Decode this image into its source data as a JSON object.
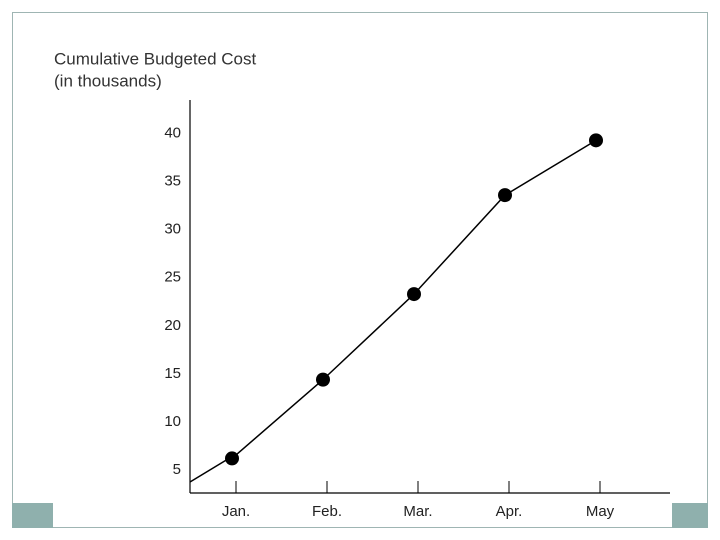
{
  "chart_data": {
    "type": "line",
    "title": "Cumulative Budgeted Cost",
    "subtitle": "(in thousands)",
    "categories": [
      "Jan.",
      "Feb.",
      "Mar.",
      "Apr.",
      "May"
    ],
    "values": [
      6.2,
      14.4,
      23.3,
      33.6,
      39.3
    ],
    "color": "#000000",
    "ylim": [
      2.6,
      43.5
    ],
    "yticks": [
      5,
      10,
      15,
      20,
      25,
      30,
      35,
      40
    ],
    "grid": false
  }
}
